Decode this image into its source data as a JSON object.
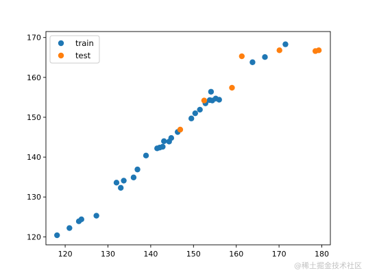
{
  "chart_data": {
    "type": "scatter",
    "title": "",
    "xlabel": "",
    "ylabel": "",
    "xlim": [
      115.5,
      182.0
    ],
    "ylim": [
      118.0,
      171.5
    ],
    "xticks": [
      120,
      130,
      140,
      150,
      160,
      170,
      180
    ],
    "yticks": [
      120,
      130,
      140,
      150,
      160,
      170
    ],
    "grid": false,
    "legend_position": "top-left",
    "series": [
      {
        "name": "train",
        "color": "#1f77b4",
        "points": [
          [
            118.1,
            120.4
          ],
          [
            121.0,
            122.2
          ],
          [
            123.2,
            123.9
          ],
          [
            123.8,
            124.4
          ],
          [
            127.3,
            125.3
          ],
          [
            132.0,
            133.6
          ],
          [
            133.0,
            132.3
          ],
          [
            133.7,
            134.1
          ],
          [
            136.0,
            134.9
          ],
          [
            136.9,
            136.9
          ],
          [
            138.9,
            140.4
          ],
          [
            141.5,
            142.2
          ],
          [
            142.1,
            142.4
          ],
          [
            142.8,
            142.6
          ],
          [
            143.1,
            144.0
          ],
          [
            144.3,
            143.9
          ],
          [
            144.8,
            144.8
          ],
          [
            146.3,
            146.3
          ],
          [
            149.5,
            149.7
          ],
          [
            150.4,
            151.0
          ],
          [
            151.5,
            151.9
          ],
          [
            152.8,
            153.5
          ],
          [
            153.8,
            154.3
          ],
          [
            154.4,
            154.2
          ],
          [
            154.1,
            156.4
          ],
          [
            155.2,
            154.7
          ],
          [
            156.0,
            154.4
          ],
          [
            163.8,
            163.8
          ],
          [
            166.7,
            165.1
          ],
          [
            171.5,
            168.3
          ]
        ]
      },
      {
        "name": "test",
        "color": "#ff7f0e",
        "points": [
          [
            146.9,
            146.9
          ],
          [
            152.5,
            154.2
          ],
          [
            159.0,
            157.4
          ],
          [
            161.3,
            165.3
          ],
          [
            170.1,
            166.8
          ],
          [
            178.5,
            166.6
          ],
          [
            179.3,
            166.8
          ]
        ]
      }
    ]
  },
  "watermark": "@稀土掘金技术社区"
}
